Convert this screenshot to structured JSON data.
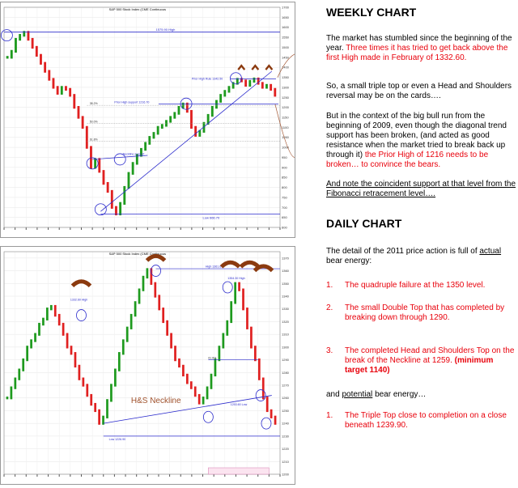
{
  "weekly_chart": {
    "chart_data": {
      "type": "bar",
      "title": "S&P 500 Stock Index (CME Continuous",
      "ylabels": [
        "1700",
        "1650",
        "1600",
        "1550",
        "1500",
        "1450",
        "1400",
        "1350",
        "1300",
        "1250",
        "1200",
        "1150",
        "1100",
        "1050",
        "1000",
        "950",
        "900",
        "850",
        "800",
        "750",
        "700",
        "650",
        "600"
      ],
      "ylim": [
        600,
        1700
      ],
      "annotations": {
        "high_label": "1575.90 High",
        "prior_high_rule": "Prior High Rule 1342.50",
        "prior_high_support": "Prior High support 1216.70",
        "neckline_support": "Neckline support",
        "low_label": "Low 666.70",
        "fib_levels": [
          "38.2%",
          "50.0%",
          "61.8%"
        ]
      },
      "series": [
        {
          "values": [
            1450,
            1480,
            1540,
            1560,
            1575,
            1540,
            1500,
            1460,
            1420,
            1380,
            1340,
            1300,
            1270,
            1300,
            1290,
            1260,
            1200,
            1150,
            1100,
            1000,
            900,
            940,
            880,
            820,
            780,
            700,
            667,
            720,
            800,
            870,
            920,
            960,
            990,
            1020,
            1050,
            1070,
            1100,
            1110,
            1130,
            1150,
            1170,
            1200,
            1217,
            1180,
            1100,
            1060,
            1080,
            1120,
            1160,
            1200,
            1230,
            1260,
            1280,
            1300,
            1320,
            1340,
            1332,
            1310,
            1330,
            1342,
            1320,
            1300,
            1310,
            1290,
            1260
          ]
        }
      ]
    }
  },
  "daily_chart": {
    "chart_data": {
      "type": "bar",
      "title": "S&P 500 Stock Index (CME Continuous",
      "ylabels": [
        "1370",
        "1360",
        "1350",
        "1340",
        "1330",
        "1320",
        "1310",
        "1300",
        "1290",
        "1280",
        "1270",
        "1260",
        "1250",
        "1240",
        "1230",
        "1220",
        "1210",
        "1200"
      ],
      "ylim": [
        1200,
        1375
      ],
      "annotations": {
        "high_1": "1332.60 High",
        "high_2": "High 1361.60",
        "high_3": "1354.30 High",
        "low_1": "Low 1226.90",
        "low_2": "1253.60 Low",
        "hs_neckline": "H&S Neckline",
        "fib": "61.8%"
      },
      "series": [
        {
          "values": [
            1260,
            1268,
            1275,
            1282,
            1290,
            1300,
            1305,
            1310,
            1318,
            1322,
            1330,
            1332,
            1325,
            1318,
            1310,
            1300,
            1295,
            1285,
            1275,
            1270,
            1262,
            1255,
            1250,
            1240,
            1245,
            1258,
            1270,
            1282,
            1295,
            1305,
            1315,
            1325,
            1335,
            1345,
            1355,
            1361,
            1350,
            1340,
            1330,
            1320,
            1310,
            1300,
            1290,
            1285,
            1278,
            1272,
            1268,
            1262,
            1256,
            1260,
            1268,
            1278,
            1290,
            1300,
            1310,
            1320,
            1335,
            1350,
            1345,
            1330,
            1315,
            1300,
            1290,
            1275,
            1260,
            1250,
            1245,
            1240
          ]
        }
      ]
    }
  },
  "text": {
    "weekly_heading": "WEEKLY CHART",
    "w_p1a": "The market has stumbled since the beginning of the year.",
    "w_p1b": "Three times it has tried to get back above the first High made in February of 1332.60.",
    "w_p2": "So, a small triple top or even a Head and Shoulders reversal may be on the cards….",
    "w_p3a": "But in the context of the big bull run from the beginning of 2009, even though the diagonal trend support has been broken, (and acted as good resistance when the market tried to break back up through it)",
    "w_p3b": "the Prior High of 1216 needs to be broken… to convince the bears.",
    "w_p4": "And note the coincident support at that level from the Fibonacci retracement level….",
    "daily_heading": "DAILY CHART",
    "d_p1a": "The detail of the 2011 price action is full of",
    "d_p1b": "actual",
    "d_p1c": "bear energy:",
    "d_i1n": "1.",
    "d_i1": "The quadruple failure at the 1350 level.",
    "d_i2n": "2.",
    "d_i2": "The small Double Top that has completed by breaking down through 1290.",
    "d_i3n": "3.",
    "d_i3a": "The completed Head and Shoulders Top on the break of the Neckline at 1259.",
    "d_i3b": "(minimum target 1140)",
    "d_p2a": "and",
    "d_p2b": "potential",
    "d_p2c": "bear energy…",
    "d_i4n": "1.",
    "d_i4": "The Triple Top close to completion on a close beneath 1239.90."
  }
}
